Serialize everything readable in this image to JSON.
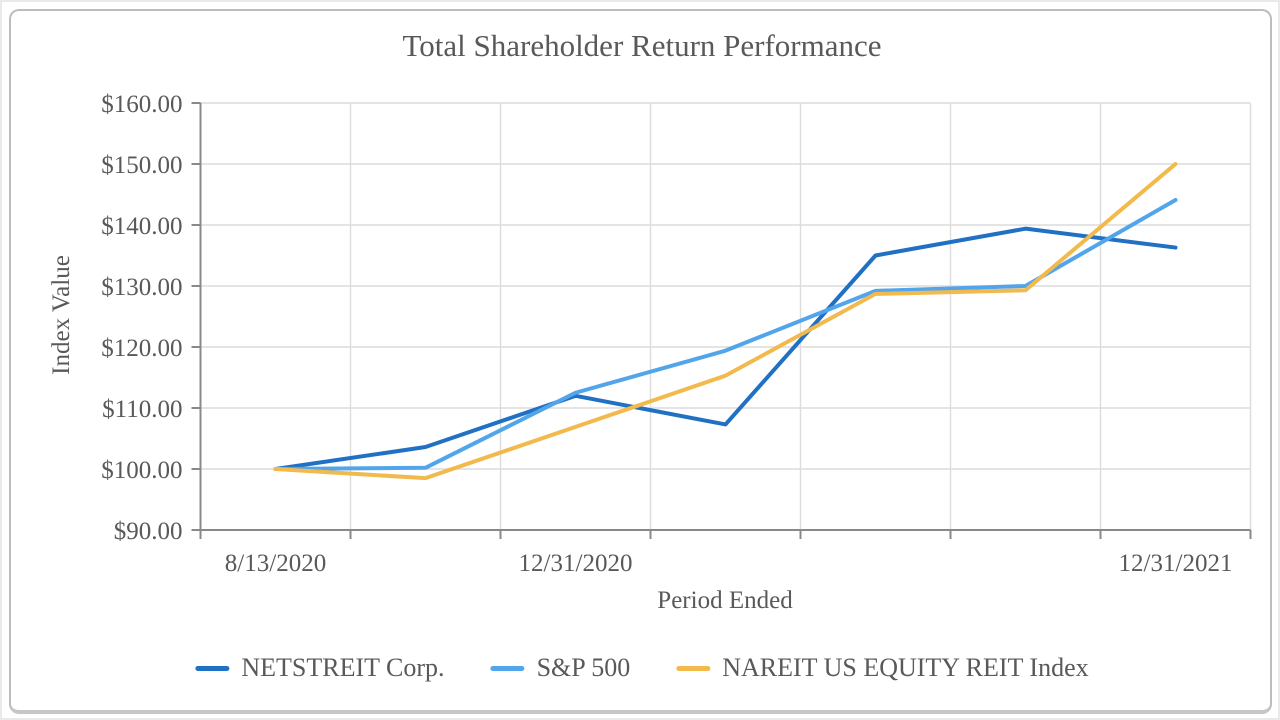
{
  "window": {
    "title": "Total Shareholder Return Performance"
  },
  "colors": {
    "text": "#595959",
    "grid": "#dcdcdc",
    "axis": "#898989",
    "card_border": "#bdbdbd",
    "netstreit_line": "#2070C4",
    "sp500_line": "#52A5EB",
    "nareit_line": "#F2B94C"
  },
  "chart_data": {
    "type": "line",
    "title": "Total Shareholder Return Performance",
    "xlabel": "Period Ended",
    "ylabel": "Index Value",
    "ylim": [
      90,
      160
    ],
    "y_tick_step": 10,
    "y_tick_labels": [
      "$160.00",
      "$150.00",
      "$140.00",
      "$130.00",
      "$120.00",
      "$110.00",
      "$100.00",
      "$90.00"
    ],
    "categories": [
      "8/13/2020",
      "",
      "12/31/2020",
      "",
      "",
      "",
      "12/31/2021"
    ],
    "grid": true,
    "legend_position": "bottom",
    "series": [
      {
        "name": "NETSTREIT Corp.",
        "color": "#2070C4",
        "values": [
          100.0,
          103.6,
          112.0,
          107.3,
          135.0,
          139.4,
          136.3
        ]
      },
      {
        "name": "S&P 500",
        "color": "#52A5EB",
        "values": [
          100.0,
          100.2,
          112.5,
          119.4,
          129.2,
          130.0,
          144.1
        ]
      },
      {
        "name": "NAREIT US EQUITY REIT Index",
        "color": "#F2B94C",
        "values": [
          100.0,
          98.5,
          106.9,
          115.3,
          128.7,
          129.3,
          150.0
        ]
      }
    ]
  }
}
